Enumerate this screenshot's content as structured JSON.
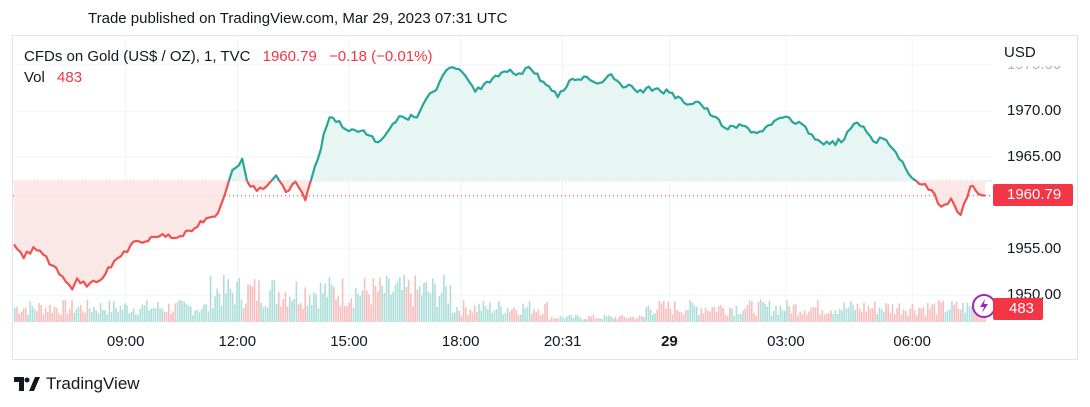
{
  "header": {
    "published": "Trade published on TradingView.com, Mar 29, 2023 07:31 UTC"
  },
  "legend": {
    "symbol": "CFDs on Gold (US$ / OZ), 1, TVC",
    "price": "1960.79",
    "change": "−0.18 (−0.01%)",
    "vol_label": "Vol",
    "vol_value": "483"
  },
  "axis": {
    "currency": "USD"
  },
  "price_tag": "1960.79",
  "vol_tag": "483",
  "footer": {
    "brand": "TradingView"
  },
  "colors": {
    "up": "#26a69a",
    "down": "#ef5350",
    "up_fill": "#e6f5f2",
    "down_fill": "#fde6e6"
  },
  "chart_data": {
    "type": "area",
    "baseline": 1962.4,
    "ylim": [
      1948.5,
      1976.0
    ],
    "y_ticks": [
      {
        "value": 1950,
        "label": "1950.00"
      },
      {
        "value": 1955,
        "label": "1955.00"
      },
      {
        "value": 1965,
        "label": "1965.00"
      },
      {
        "value": 1970,
        "label": "1970.00"
      },
      {
        "value": 1975,
        "label": "1975.00"
      }
    ],
    "x_ticks": [
      {
        "t": 0.115,
        "label": "09:00",
        "bold": false
      },
      {
        "t": 0.23,
        "label": "12:00",
        "bold": false
      },
      {
        "t": 0.345,
        "label": "15:00",
        "bold": false
      },
      {
        "t": 0.46,
        "label": "18:00",
        "bold": false
      },
      {
        "t": 0.565,
        "label": "20:31",
        "bold": false
      },
      {
        "t": 0.675,
        "label": "29",
        "bold": true
      },
      {
        "t": 0.795,
        "label": "03:00",
        "bold": false
      },
      {
        "t": 0.925,
        "label": "06:00",
        "bold": false
      }
    ],
    "series": [
      {
        "values": [
          [
            0.0,
            1955.5
          ],
          [
            0.01,
            1954.0
          ],
          [
            0.02,
            1955.2
          ],
          [
            0.03,
            1954.4
          ],
          [
            0.04,
            1953.2
          ],
          [
            0.05,
            1952.0
          ],
          [
            0.06,
            1950.6
          ],
          [
            0.065,
            1951.8
          ],
          [
            0.075,
            1950.9
          ],
          [
            0.085,
            1951.4
          ],
          [
            0.1,
            1953.0
          ],
          [
            0.11,
            1954.2
          ],
          [
            0.12,
            1955.4
          ],
          [
            0.135,
            1955.8
          ],
          [
            0.15,
            1956.4
          ],
          [
            0.165,
            1956.2
          ],
          [
            0.18,
            1957.0
          ],
          [
            0.195,
            1957.9
          ],
          [
            0.21,
            1958.9
          ],
          [
            0.215,
            1960.3
          ],
          [
            0.225,
            1963.6
          ],
          [
            0.235,
            1964.8
          ],
          [
            0.24,
            1962.4
          ],
          [
            0.25,
            1961.3
          ],
          [
            0.26,
            1961.8
          ],
          [
            0.27,
            1963.0
          ],
          [
            0.28,
            1961.2
          ],
          [
            0.29,
            1962.3
          ],
          [
            0.3,
            1960.3
          ],
          [
            0.31,
            1964.0
          ],
          [
            0.325,
            1969.3
          ],
          [
            0.335,
            1968.9
          ],
          [
            0.345,
            1967.8
          ],
          [
            0.36,
            1967.9
          ],
          [
            0.375,
            1966.6
          ],
          [
            0.39,
            1968.6
          ],
          [
            0.4,
            1969.4
          ],
          [
            0.415,
            1969.3
          ],
          [
            0.425,
            1971.4
          ],
          [
            0.435,
            1972.3
          ],
          [
            0.445,
            1974.4
          ],
          [
            0.455,
            1974.6
          ],
          [
            0.465,
            1973.8
          ],
          [
            0.475,
            1972.1
          ],
          [
            0.49,
            1973.1
          ],
          [
            0.505,
            1974.3
          ],
          [
            0.52,
            1974.1
          ],
          [
            0.53,
            1974.8
          ],
          [
            0.545,
            1973.2
          ],
          [
            0.56,
            1971.5
          ],
          [
            0.575,
            1973.5
          ],
          [
            0.59,
            1973.7
          ],
          [
            0.6,
            1973.0
          ],
          [
            0.615,
            1974.0
          ],
          [
            0.63,
            1972.6
          ],
          [
            0.645,
            1972.3
          ],
          [
            0.66,
            1972.4
          ],
          [
            0.675,
            1972.0
          ],
          [
            0.69,
            1970.9
          ],
          [
            0.705,
            1971.0
          ],
          [
            0.72,
            1969.4
          ],
          [
            0.735,
            1968.0
          ],
          [
            0.75,
            1968.4
          ],
          [
            0.765,
            1967.6
          ],
          [
            0.78,
            1968.5
          ],
          [
            0.795,
            1969.4
          ],
          [
            0.805,
            1968.6
          ],
          [
            0.815,
            1968.3
          ],
          [
            0.825,
            1966.9
          ],
          [
            0.84,
            1966.4
          ],
          [
            0.855,
            1966.9
          ],
          [
            0.865,
            1968.6
          ],
          [
            0.875,
            1968.3
          ],
          [
            0.885,
            1966.7
          ],
          [
            0.895,
            1967.0
          ],
          [
            0.905,
            1965.9
          ],
          [
            0.915,
            1964.5
          ],
          [
            0.925,
            1962.7
          ],
          [
            0.935,
            1962.0
          ],
          [
            0.945,
            1961.4
          ],
          [
            0.955,
            1959.6
          ],
          [
            0.965,
            1960.5
          ],
          [
            0.975,
            1958.7
          ],
          [
            0.985,
            1961.8
          ],
          [
            0.993,
            1961.0
          ],
          [
            1.0,
            1960.79
          ]
        ]
      }
    ]
  }
}
